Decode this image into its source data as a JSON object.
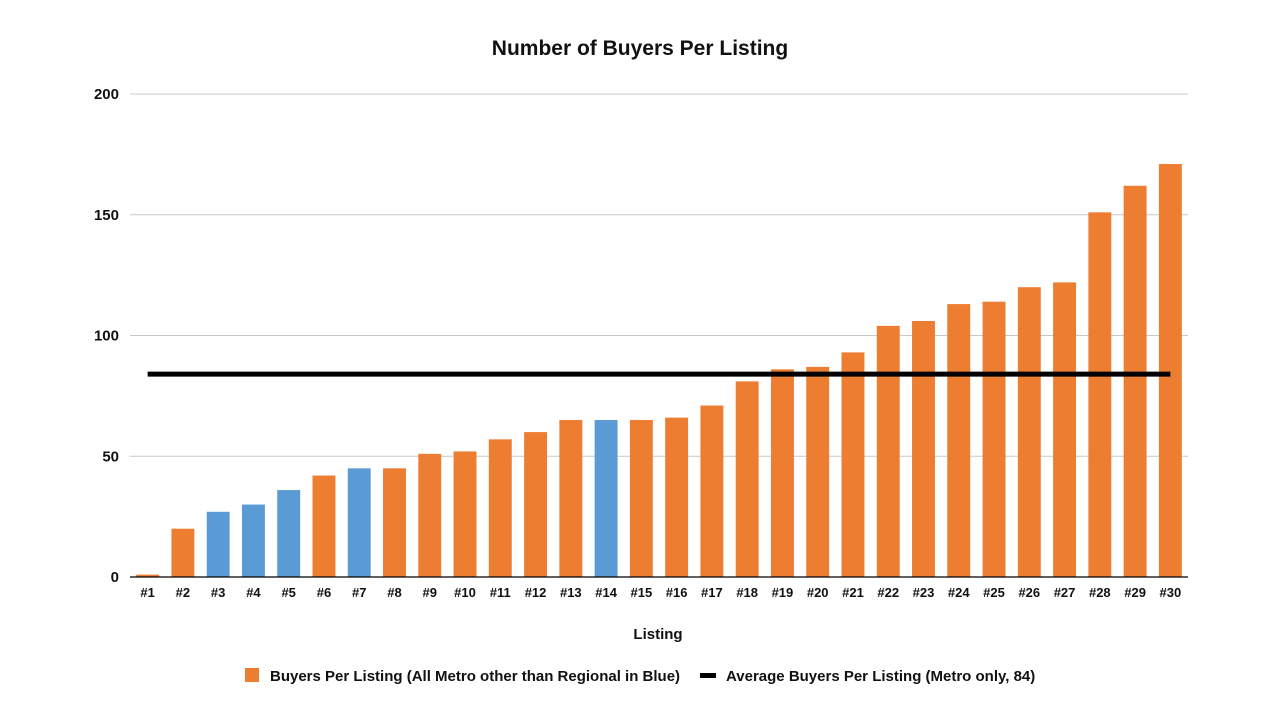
{
  "chart_data": {
    "type": "bar",
    "title": "Number of Buyers Per Listing",
    "xlabel": "Listing",
    "ylabel": "",
    "ylim": [
      0,
      200
    ],
    "yticks": [
      0,
      50,
      100,
      150,
      200
    ],
    "grid": true,
    "legend_position": "bottom",
    "categories": [
      "#1",
      "#2",
      "#3",
      "#4",
      "#5",
      "#6",
      "#7",
      "#8",
      "#9",
      "#10",
      "#11",
      "#12",
      "#13",
      "#14",
      "#15",
      "#16",
      "#17",
      "#18",
      "#19",
      "#20",
      "#21",
      "#22",
      "#23",
      "#24",
      "#25",
      "#26",
      "#27",
      "#28",
      "#29",
      "#30"
    ],
    "series": [
      {
        "name": "Buyers Per Listing (All Metro other than Regional in Blue)",
        "type": "bar",
        "color": "#ED7D31",
        "values": [
          1,
          20,
          27,
          30,
          36,
          42,
          45,
          45,
          51,
          52,
          57,
          60,
          65,
          65,
          65,
          66,
          71,
          81,
          86,
          87,
          93,
          104,
          106,
          113,
          114,
          120,
          122,
          151,
          162,
          171
        ],
        "highlight_color": "#5B9BD5",
        "highlight_indices": [
          2,
          3,
          4,
          6,
          13
        ]
      },
      {
        "name": "Average Buyers Per Listing (Metro only, 84)",
        "type": "line",
        "color": "#000000",
        "value": 84
      }
    ]
  }
}
